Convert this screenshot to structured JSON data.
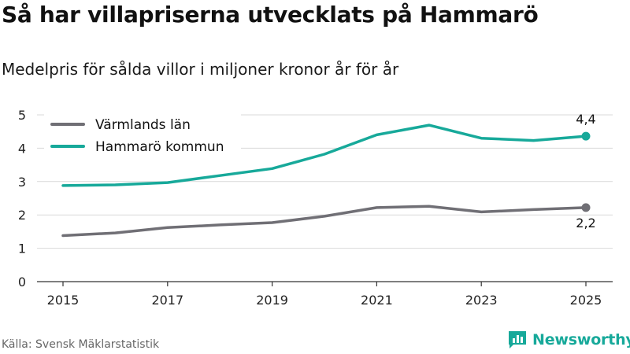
{
  "title": "Så har villapriserna utvecklats på Hammarö",
  "subtitle": "Medelpris för sålda villor i miljoner kronor år för år",
  "source": "Källa: Svensk Mäklarstatistik",
  "brand": {
    "name": "Newsworthy",
    "icon": "bar-chart-logo-icon",
    "color": "#17a99a"
  },
  "chart_data": {
    "type": "line",
    "title": "Så har villapriserna utvecklats på Hammarö",
    "subtitle": "Medelpris för sålda villor i miljoner kronor år för år",
    "xlabel": "",
    "ylabel": "",
    "x": [
      2015,
      2016,
      2017,
      2018,
      2019,
      2020,
      2021,
      2022,
      2023,
      2024,
      2025
    ],
    "xticks": [
      "2015",
      "2017",
      "2019",
      "2021",
      "2023",
      "2025"
    ],
    "yticks": [
      "0",
      "1",
      "2",
      "3",
      "4",
      "5"
    ],
    "ylim": [
      0,
      5
    ],
    "xlim": [
      2015,
      2025
    ],
    "grid": true,
    "legend_position": "top-left",
    "series": [
      {
        "name": "Värmlands län",
        "color": "#706f75",
        "values": [
          1.38,
          1.46,
          1.62,
          1.7,
          1.77,
          1.96,
          2.22,
          2.26,
          2.09,
          2.16,
          2.22
        ],
        "end_label": "2,2"
      },
      {
        "name": "Hammarö kommun",
        "color": "#17a99a",
        "values": [
          2.88,
          2.9,
          2.97,
          3.18,
          3.39,
          3.82,
          4.4,
          4.69,
          4.3,
          4.23,
          4.36
        ],
        "end_label": "4,4"
      }
    ]
  }
}
